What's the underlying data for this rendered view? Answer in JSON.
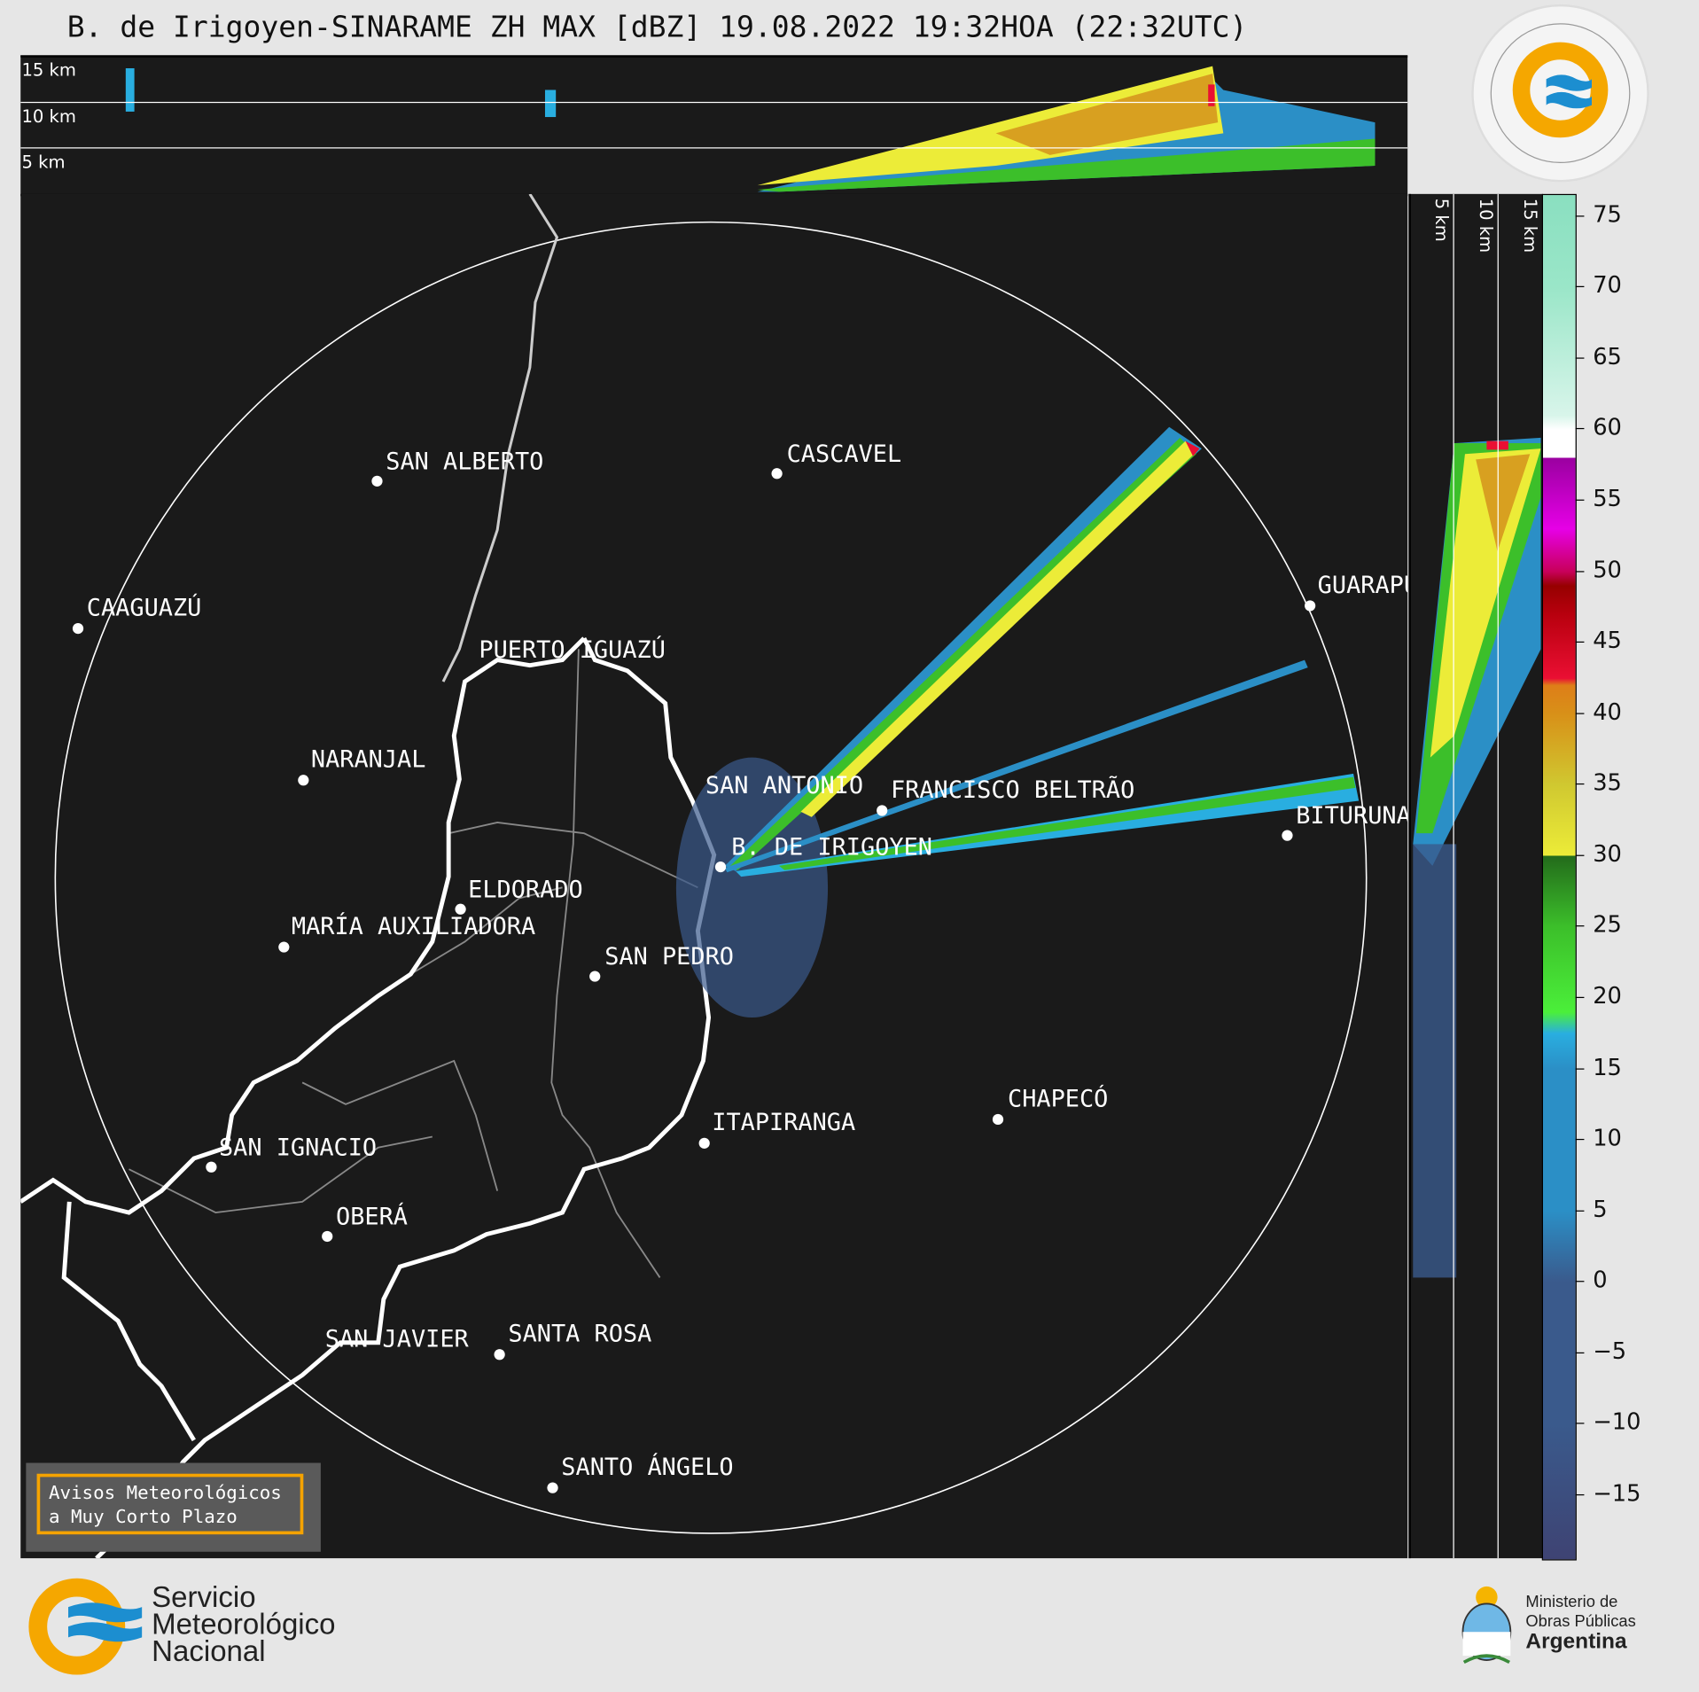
{
  "title": "B. de Irigoyen-SINARAME ZH MAX [dBZ] 19.08.2022 19:32HOA (22:32UTC)",
  "top_panel": {
    "height_labels": [
      "15 km",
      "10 km",
      "5 km"
    ]
  },
  "side_panel": {
    "height_labels": [
      "5 km",
      "10 km",
      "15 km"
    ]
  },
  "colorbar": {
    "unit": "dBZ",
    "range": [
      -19.5,
      76.5
    ],
    "ticks": [
      "75",
      "70",
      "65",
      "60",
      "55",
      "50",
      "45",
      "40",
      "35",
      "30",
      "25",
      "20",
      "15",
      "10",
      "5",
      "0",
      "−5",
      "−10",
      "−15"
    ],
    "tick_values": [
      75,
      70,
      65,
      60,
      55,
      50,
      45,
      40,
      35,
      30,
      25,
      20,
      15,
      10,
      5,
      0,
      -5,
      -10,
      -15
    ],
    "colors": {
      "very_low": "#3e4373",
      "low": "#3a5a8c",
      "blue": "#2b8fc6",
      "cyan": "#29aee0",
      "green": "#3cbf2a",
      "dark_green": "#236b1b",
      "yellow": "#ecec38",
      "orange": "#de7e18",
      "red": "#ea0f33",
      "dark_red": "#960000",
      "magenta": "#e600e6",
      "purple": "#9a00a0",
      "white": "#ffffff",
      "mint": "#8adfc0"
    }
  },
  "cities": [
    {
      "name": "SAN ALBERTO",
      "dot": true
    },
    {
      "name": "CASCAVEL",
      "dot": true
    },
    {
      "name": "CAAGUAZÚ",
      "dot": true
    },
    {
      "name": "GUARAPUAVA",
      "dot": true
    },
    {
      "name": "PUERTO IGUAZÚ",
      "dot": false
    },
    {
      "name": "NARANJAL",
      "dot": true
    },
    {
      "name": "SAN ANTONIO",
      "dot": false
    },
    {
      "name": "FRANCISCO BELTRÃO",
      "dot": true
    },
    {
      "name": "BITURUNA",
      "dot": true
    },
    {
      "name": "B. DE IRIGOYEN",
      "dot": true
    },
    {
      "name": "ELDORADO",
      "dot": true
    },
    {
      "name": "MARÍA AUXILIADORA",
      "dot": true
    },
    {
      "name": "SAN PEDRO",
      "dot": true
    },
    {
      "name": "ITAPIRANGA",
      "dot": true
    },
    {
      "name": "CHAPECÓ",
      "dot": true
    },
    {
      "name": "SAN IGNACIO",
      "dot": true
    },
    {
      "name": "OBERÁ",
      "dot": true
    },
    {
      "name": "SAN JAVIER",
      "dot": false
    },
    {
      "name": "SANTA ROSA",
      "dot": true
    },
    {
      "name": "SANTO ÁNGELO",
      "dot": true
    }
  ],
  "legend": {
    "line1": "Avisos Meteorológicos",
    "line2": "a Muy Corto Plazo"
  },
  "footer": {
    "smn": [
      "Servicio",
      "Meteorológico",
      "Nacional"
    ],
    "ministry": [
      "Ministerio de",
      "Obras Públicas",
      "Argentina"
    ],
    "seal_text": "SERVICIO METEOROLÓGICO NACIONAL",
    "seal_country": "ARGENTINA"
  }
}
